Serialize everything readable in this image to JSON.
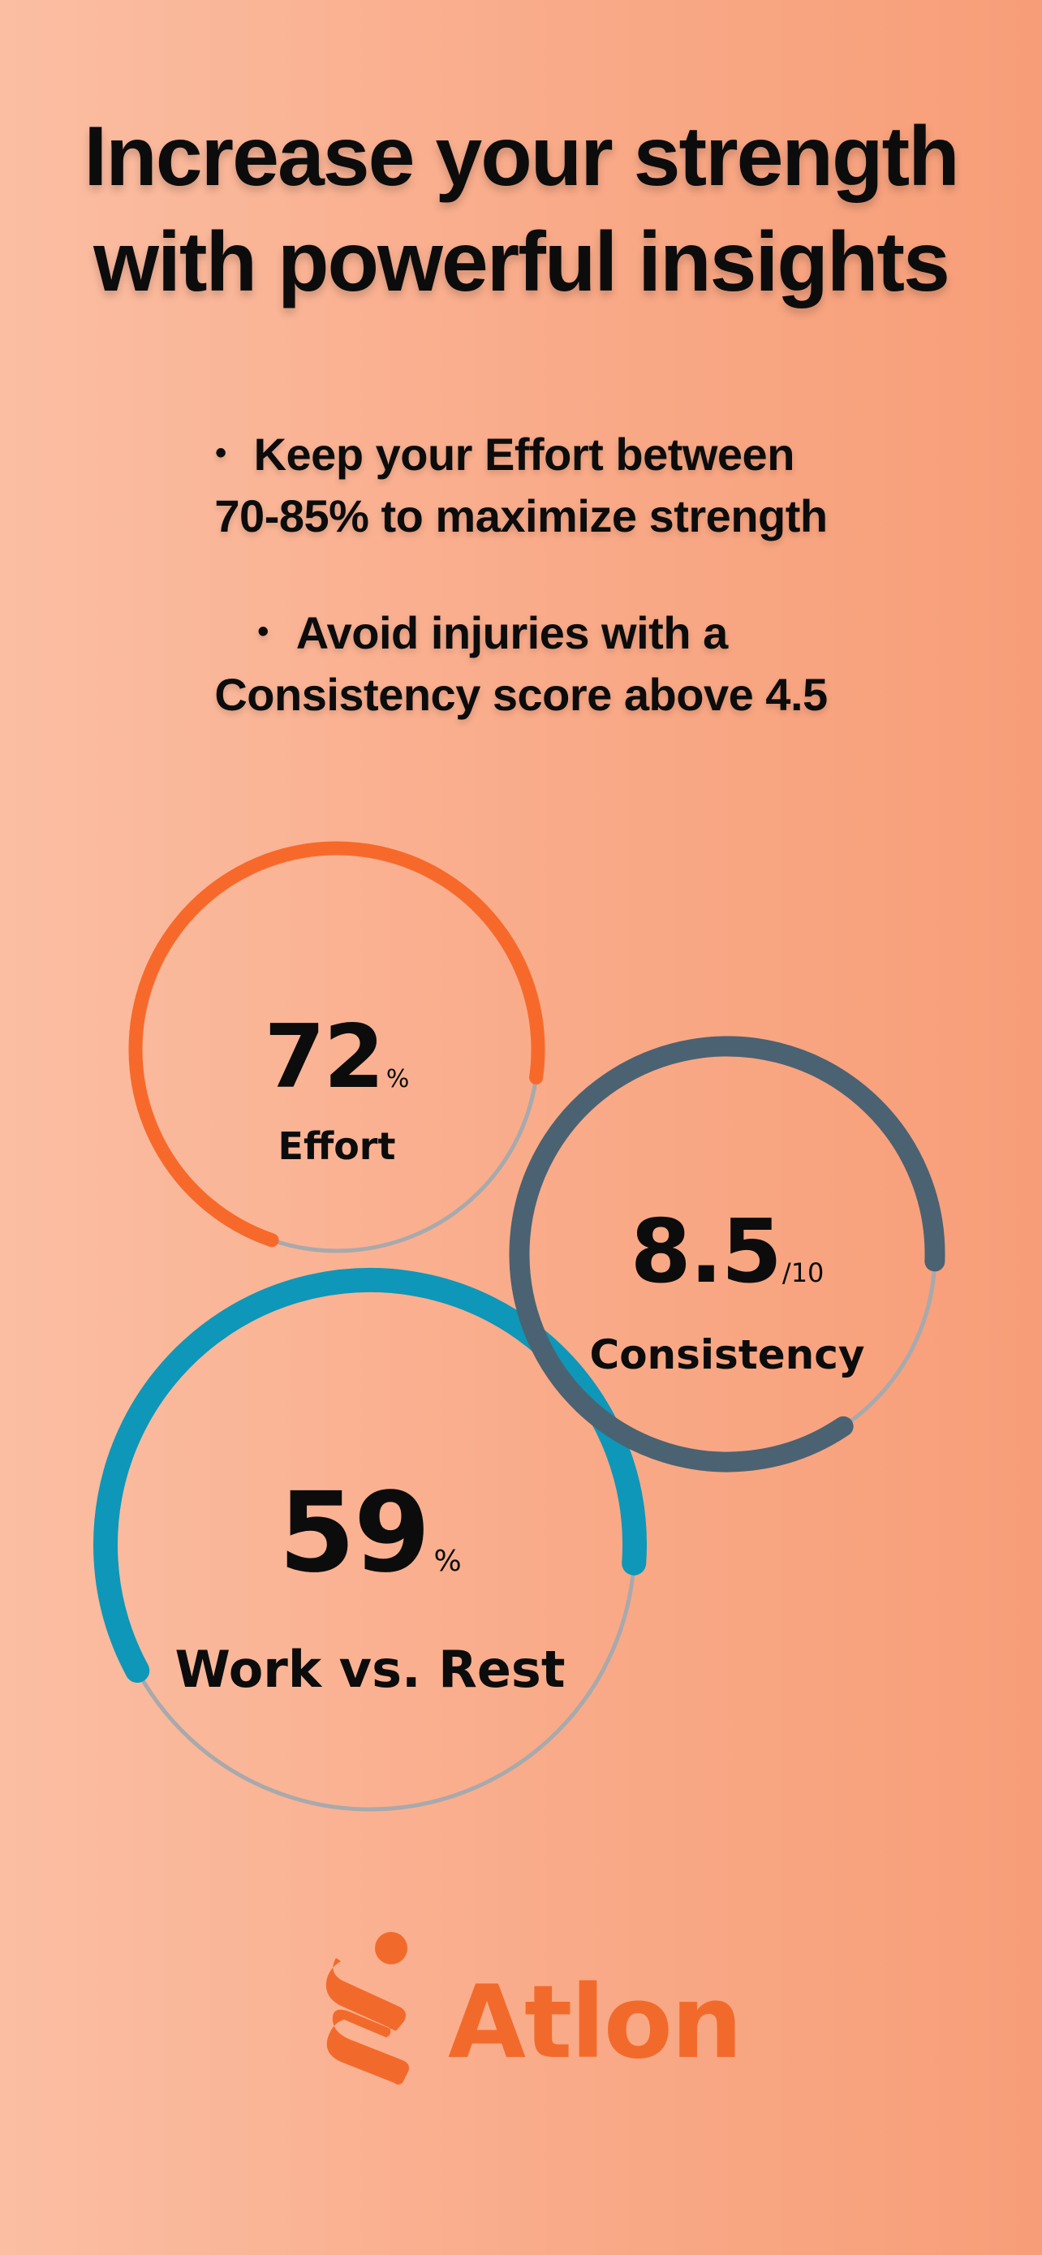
{
  "headline": {
    "line1": "Increase your strength",
    "line2": "with powerful insights"
  },
  "tips": [
    {
      "bullet": "•",
      "line1": "Keep your Effort between",
      "line2": "70-85% to maximize strength"
    },
    {
      "bullet": "•",
      "line1": "Avoid injuries with a",
      "line2": "Consistency score above 4.5"
    }
  ],
  "metrics": {
    "effort": {
      "value": "72",
      "unit": "%",
      "label": "Effort",
      "fraction": 0.72,
      "color": "#f7692a",
      "track_color": "#a8a9ad"
    },
    "consistency": {
      "value": "8.5",
      "unit": "/10",
      "label": "Consistency",
      "fraction": 0.85,
      "color": "#4b6272",
      "track_color": "#a8a9ad"
    },
    "work_rest": {
      "value": "59",
      "unit": "%",
      "label": "Work vs. Rest",
      "fraction": 0.59,
      "color": "#0e97b8",
      "track_color": "#a8a9ad"
    }
  },
  "brand": {
    "name": "Atlon",
    "icon": "atlon-logo-icon",
    "color": "#f26a2b"
  }
}
